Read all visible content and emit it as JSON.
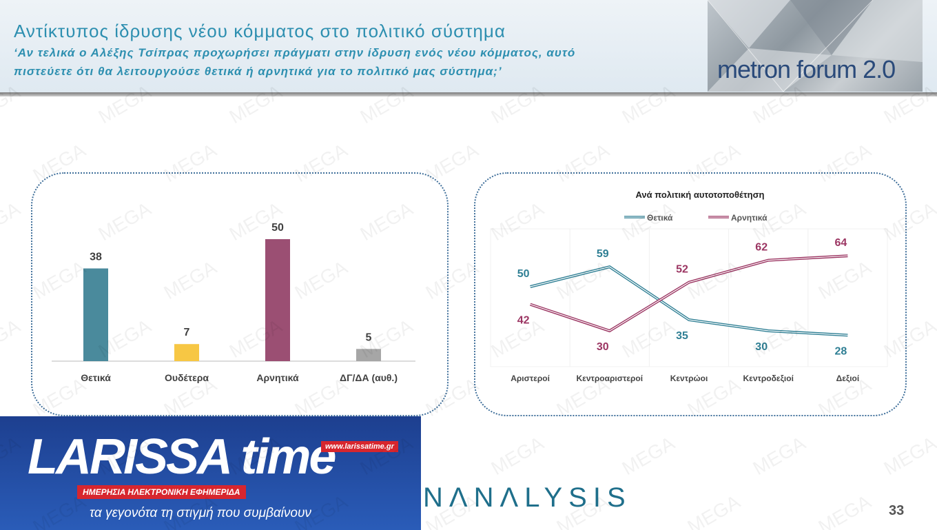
{
  "header": {
    "title": "Αντίκτυπος ίδρυσης νέου κόμματος στο πολιτικό σύστημα",
    "subtitle_line1": "‘Αν τελικά ο Αλέξης Τσίπρας προχωρήσει πράγματι στην ίδρυση ενός νέου κόμματος, αυτό",
    "subtitle_line2": "πιστεύετε ότι θα λειτουργούσε θετικά ή αρνητικά για το πολιτικό μας σύστημα;’",
    "logo_text": "metron forum 2.0"
  },
  "watermark_text": "MEGA",
  "chart_data": [
    {
      "type": "bar",
      "categories": [
        "Θετικά",
        "Ουδέτερα",
        "Αρνητικά",
        "ΔΓ/ΔΑ (αυθ.)"
      ],
      "values": [
        38,
        7,
        50,
        5
      ],
      "colors": [
        "#4a8a9c",
        "#f7c744",
        "#9b4f73",
        "#a6a6a6"
      ],
      "title": "",
      "ylim": [
        0,
        60
      ]
    },
    {
      "type": "line",
      "title": "Ανά πολιτική αυτοτοποθέτηση",
      "categories": [
        "Αριστεροί",
        "Κεντροαριστεροί",
        "Κεντρώοι",
        "Κεντροδεξιοί",
        "Δεξιοί"
      ],
      "series": [
        {
          "name": "Θετικά",
          "values": [
            50,
            59,
            35,
            30,
            28
          ],
          "color": "#2f7f94"
        },
        {
          "name": "Αρνητικά",
          "values": [
            42,
            30,
            52,
            62,
            64
          ],
          "color": "#9b3562"
        }
      ],
      "ylim": [
        20,
        70
      ],
      "legend": "top"
    }
  ],
  "footer": {
    "brand": "NΛΝΛLYSIS",
    "page_number": "33"
  },
  "larissa": {
    "logo": "LARISSA time",
    "url": "www.larissatime.gr",
    "subtitle": "ΗΜΕΡΗΣΙΑ ΗΛΕΚΤΡΟΝΙΚΗ ΕΦΗΜΕΡΙΔΑ",
    "tagline": "τα γεγονότα τη στιγμή που συμβαίνουν"
  }
}
